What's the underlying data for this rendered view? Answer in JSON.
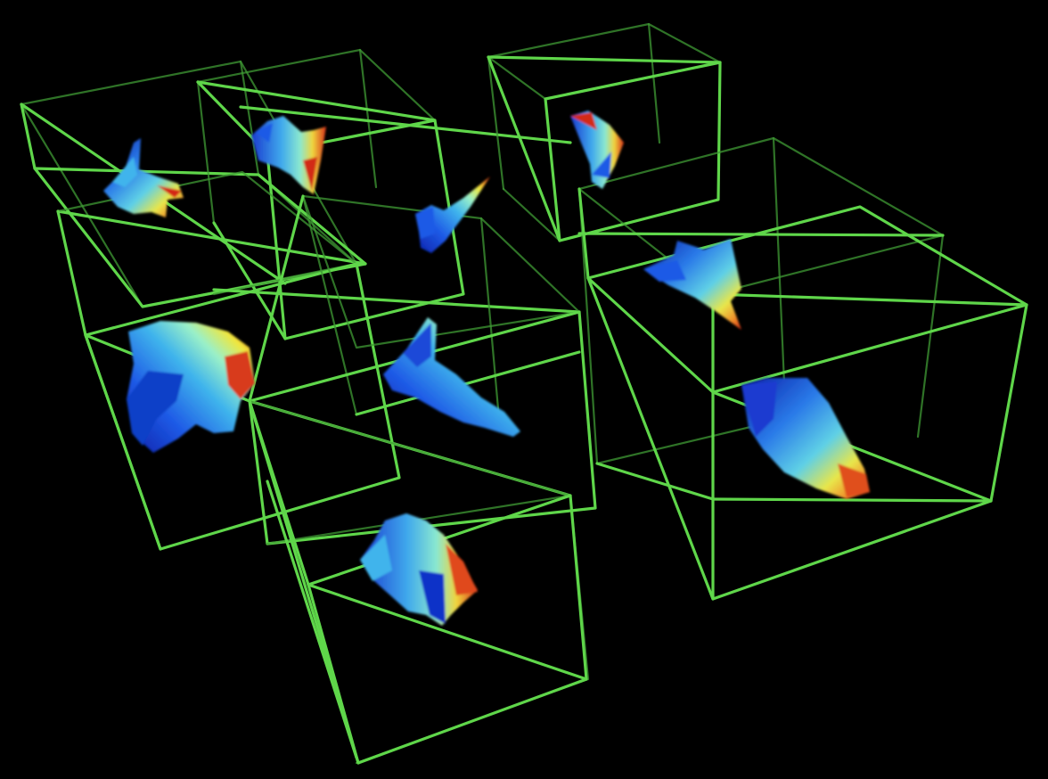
{
  "scene": {
    "background": "#000000",
    "wireframe_color": "#5fd64a",
    "wireframe_color_dim": "#3f9a34",
    "colormap": [
      "#0a1ea8",
      "#1e5ae6",
      "#3fb4ec",
      "#9af0c8",
      "#f0e63c",
      "#f08a28",
      "#d22a14"
    ]
  },
  "boxes": [
    {
      "name": "box-top-left"
    },
    {
      "name": "box-top-center"
    },
    {
      "name": "box-top-right"
    },
    {
      "name": "box-middle-left"
    },
    {
      "name": "box-middle-center"
    },
    {
      "name": "box-right-large"
    },
    {
      "name": "box-bottom-center"
    }
  ]
}
